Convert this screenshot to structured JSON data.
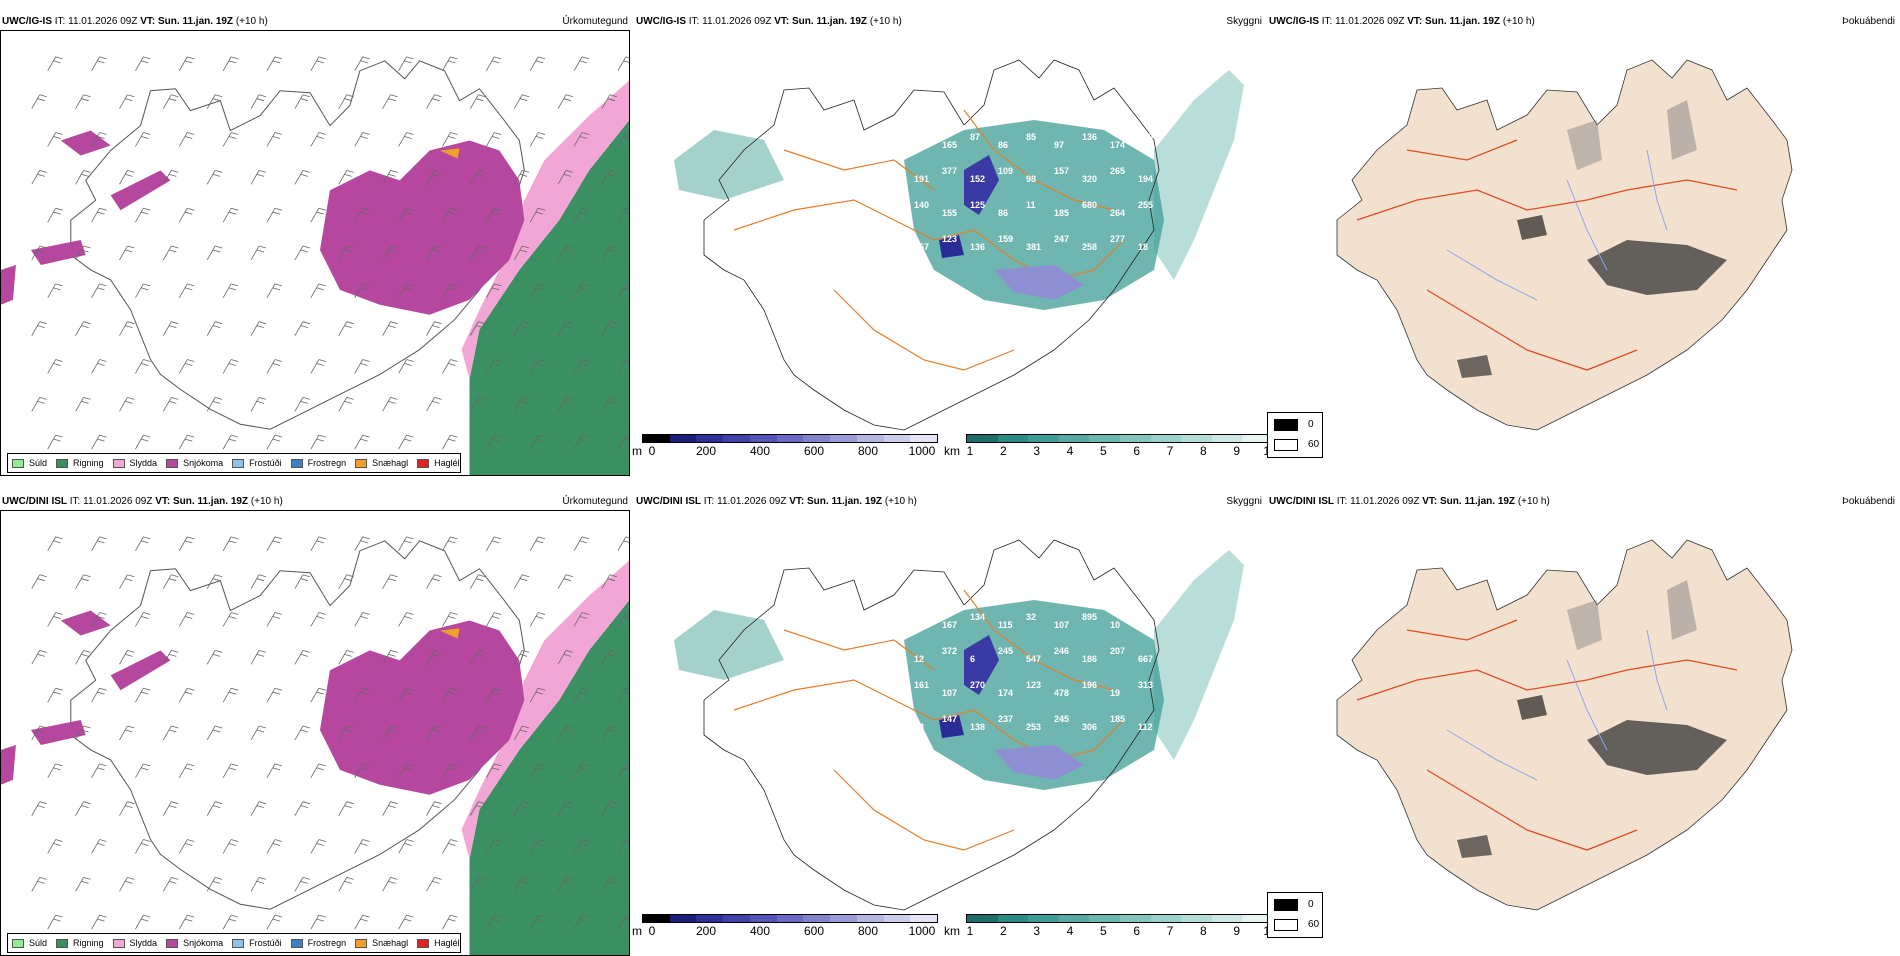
{
  "colors": {
    "suld": "#90ee90",
    "rigning": "#3a8f63",
    "slydda": "#f2a6d6",
    "snjokoma": "#b6479e",
    "frostudi": "#8fc3ee",
    "frostregn": "#3b7fc5",
    "snaehagl": "#f0a12a",
    "hagl": "#e32222",
    "fog": "#3f9d96",
    "roads": "#e87d2b",
    "land_dew": "#f3e1cf",
    "dew_roads": "#e04b25",
    "dew_rivers": "#8fa3e8"
  },
  "rows": [
    {
      "model": "UWC/IG-IS",
      "it_label": "IT:",
      "it_value": "11.01.2026 09Z",
      "vt_label": "VT:",
      "vt_value": "Sun. 11.jan. 19Z",
      "lead": "(+10 h)"
    },
    {
      "model": "UWC/DINI ISL",
      "it_label": "IT:",
      "it_value": "11.01.2026 09Z",
      "vt_label": "VT:",
      "vt_value": "Sun. 11.jan. 19Z",
      "lead": "(+10 h)"
    }
  ],
  "fields": {
    "precip": "Úrkomutegund",
    "vis": "Skyggni",
    "dew": "Þokuábendi"
  },
  "precip_legend": [
    {
      "label": "Súld",
      "color_key": "suld"
    },
    {
      "label": "Rigning",
      "color_key": "rigning"
    },
    {
      "label": "Slydda",
      "color_key": "slydda"
    },
    {
      "label": "Snjókoma",
      "color_key": "snjokoma"
    },
    {
      "label": "Frostúði",
      "color_key": "frostudi"
    },
    {
      "label": "Frostregn",
      "color_key": "frostregn"
    },
    {
      "label": "Snæhagl",
      "color_key": "snaehagl"
    },
    {
      "label": "Haglél",
      "color_key": "hagl"
    }
  ],
  "ceiling_bar": {
    "unit": "m",
    "ticks": [
      "0",
      "200",
      "400",
      "600",
      "800",
      "1000"
    ],
    "colors": [
      "#000000",
      "#1c1c7a",
      "#2f2f98",
      "#4040a8",
      "#5454b6",
      "#6a6ac2",
      "#8282cd",
      "#9c9cd8",
      "#b5b5e2",
      "#cdcdec",
      "#e4e4f5"
    ]
  },
  "vis_bar": {
    "unit": "km",
    "ticks": [
      "1",
      "2",
      "3",
      "4",
      "5",
      "6",
      "7",
      "8",
      "9",
      "10"
    ],
    "colors": [
      "#1f6e6b",
      "#2d8a84",
      "#3f9d96",
      "#55aaa3",
      "#6cb8b1",
      "#84c5be",
      "#9cd1cb",
      "#b5ddd8",
      "#cee9e5",
      "#e6f4f2"
    ]
  },
  "dew_legend": {
    "dark": "0",
    "light": "60"
  },
  "ceiling_labels": [
    [
      "309",
      "165",
      "87",
      "86",
      "85",
      "97",
      "136",
      "174",
      "180",
      "191",
      "377",
      "152",
      "109",
      "98",
      "157",
      "320",
      "265",
      "194",
      "140",
      "155",
      "125",
      "86",
      "11",
      "185",
      "680",
      "264",
      "255",
      "357",
      "123",
      "136",
      "159",
      "381",
      "247",
      "258",
      "277",
      "18"
    ],
    [
      "103",
      "167",
      "134",
      "115",
      "32",
      "107",
      "895",
      "10",
      "12",
      "12",
      "372",
      "6",
      "245",
      "547",
      "246",
      "186",
      "207",
      "667",
      "161",
      "107",
      "270",
      "174",
      "123",
      "478",
      "196",
      "19",
      "313",
      "14",
      "147",
      "138",
      "237",
      "253",
      "245",
      "306",
      "185",
      "112",
      "914"
    ]
  ]
}
